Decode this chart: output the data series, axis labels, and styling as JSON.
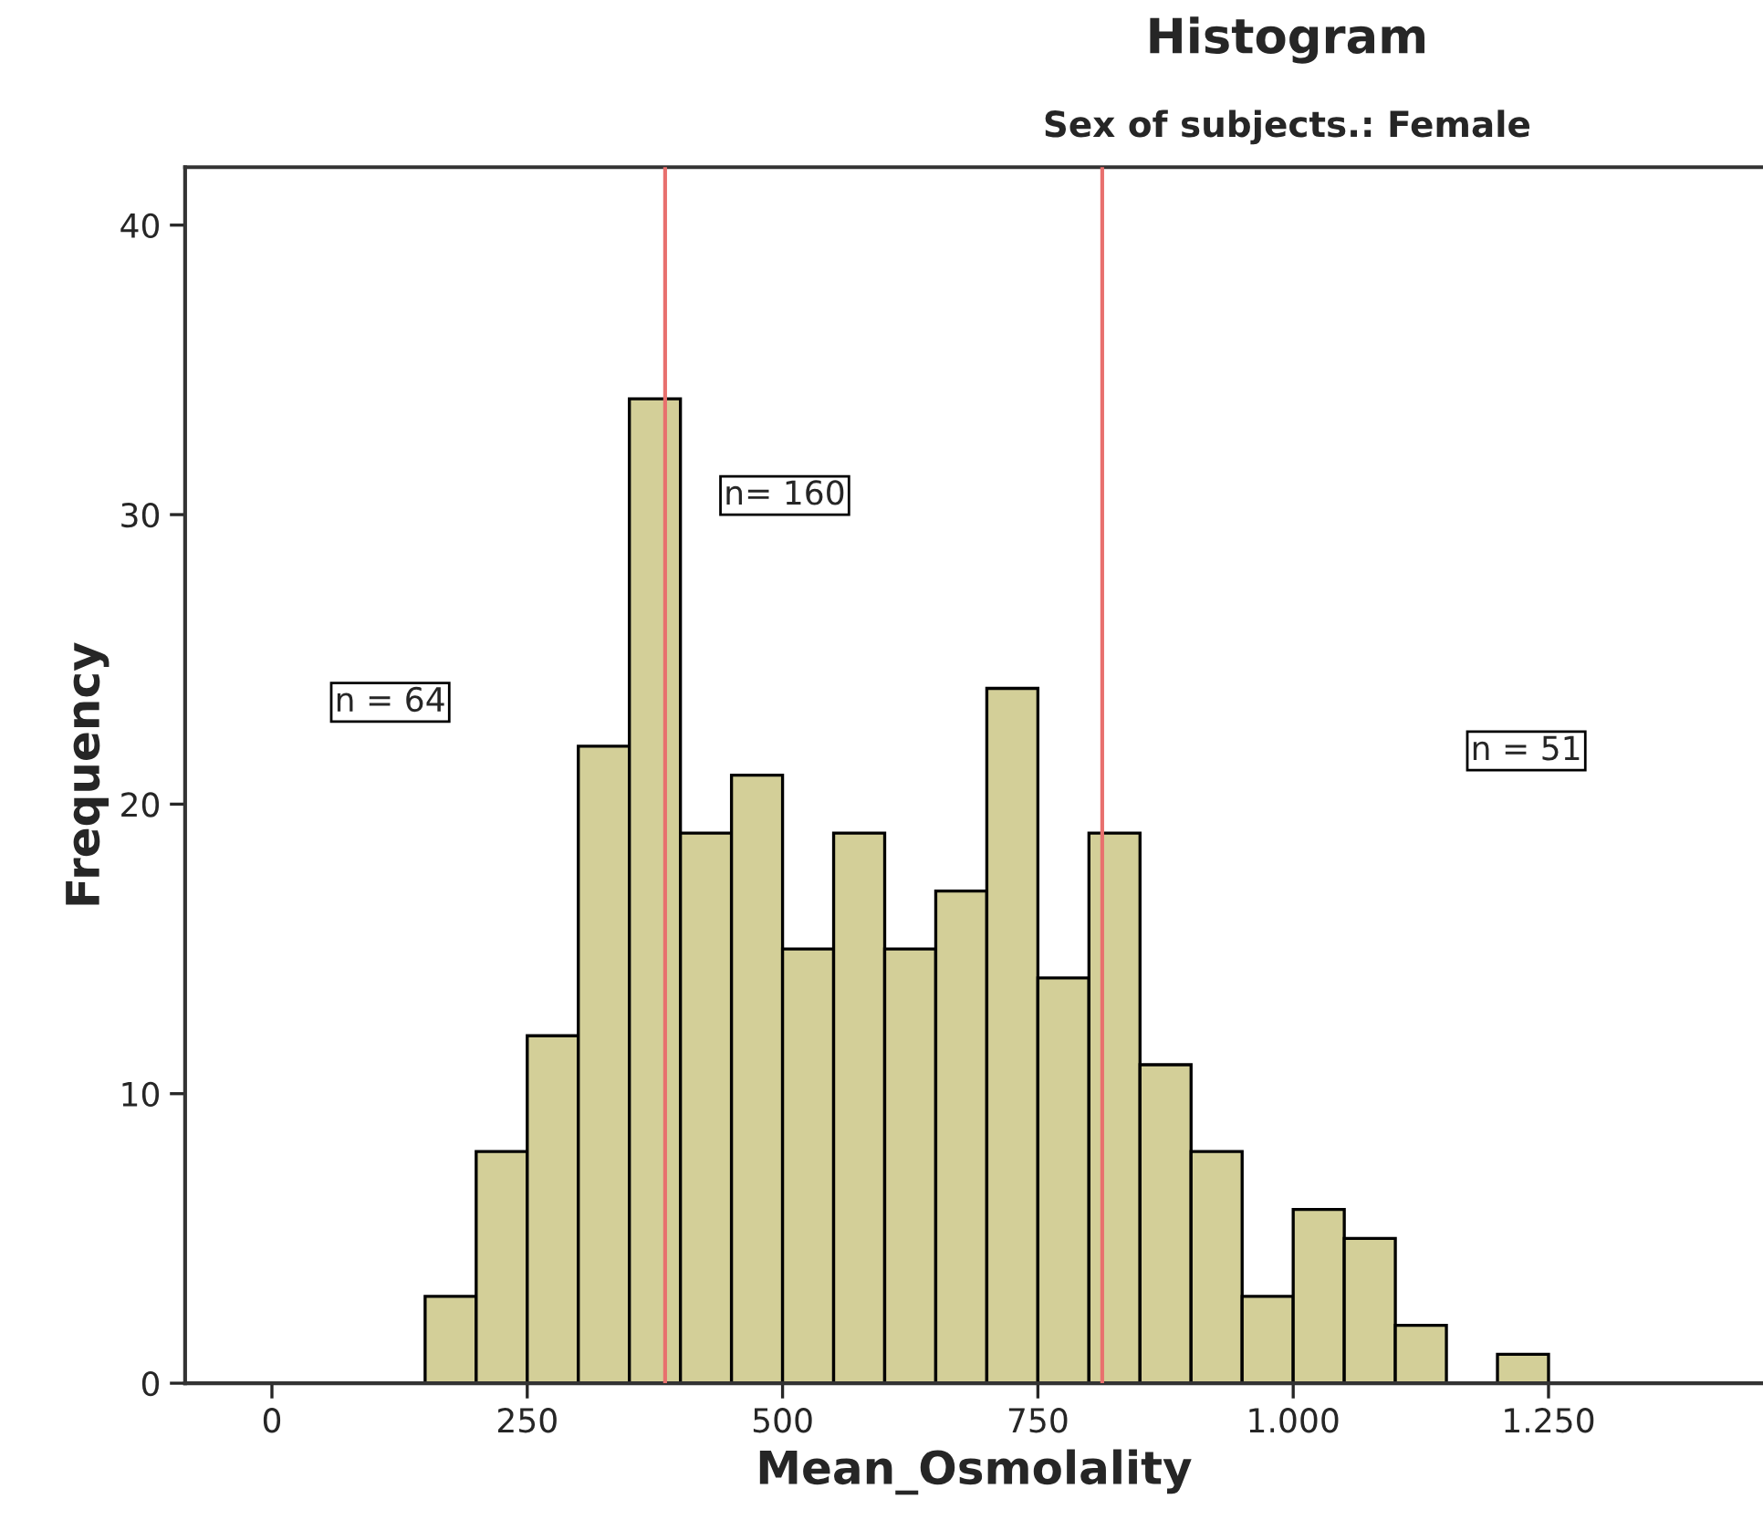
{
  "chart_data": {
    "type": "histogram",
    "title": "Histogram",
    "subtitle": "Sex of subjects.: Female",
    "xlabel": "Mean_Osmolality",
    "ylabel": "Frequency",
    "bins": [
      150,
      200,
      250,
      300,
      350,
      400,
      450,
      500,
      550,
      600,
      650,
      700,
      750,
      800,
      850,
      900,
      950,
      1000,
      1050,
      1100,
      1150,
      1200,
      1250
    ],
    "values": [
      3,
      8,
      12,
      22,
      34,
      19,
      21,
      15,
      19,
      15,
      17,
      24,
      14,
      19,
      11,
      8,
      3,
      6,
      5,
      2,
      0,
      1
    ],
    "color": "#d3cf98",
    "xlim": [
      -85,
      1460
    ],
    "ylim": [
      0,
      42
    ],
    "xticks": [
      0,
      250,
      500,
      750,
      {
        "value": 1000,
        "label": "1.000"
      },
      {
        "value": 1250,
        "label": "1.250"
      }
    ],
    "yticks": [
      0,
      10,
      20,
      30,
      40
    ],
    "ref_lines": [
      {
        "axis": "x",
        "value": 385,
        "color": "#e8706e"
      },
      {
        "axis": "x",
        "value": 813,
        "color": "#e8706e"
      }
    ],
    "annotations": [
      "n = 64",
      "n= 160",
      "n = 51"
    ],
    "grid": false
  }
}
